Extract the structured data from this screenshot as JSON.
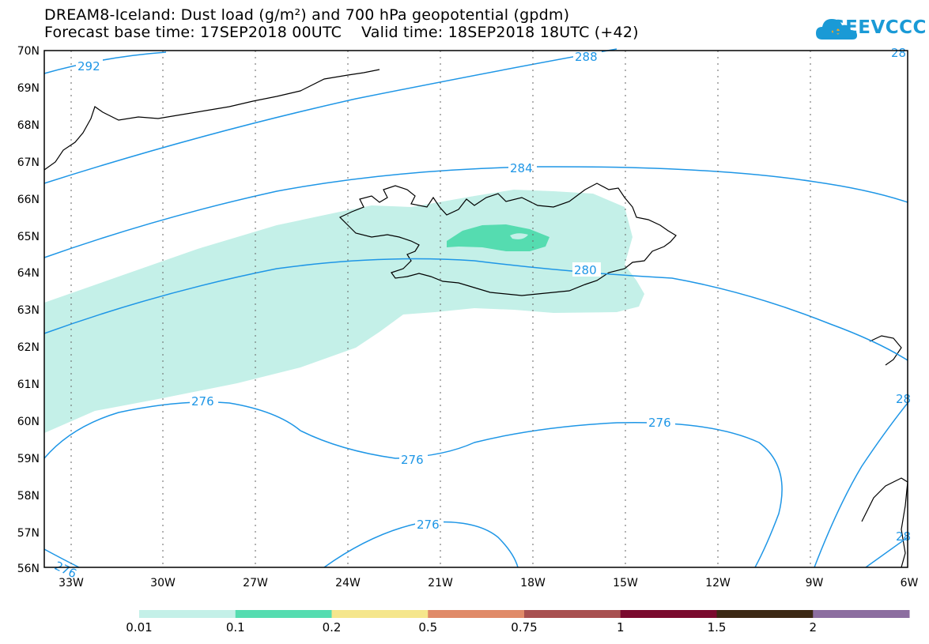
{
  "title": {
    "line1": "DREAM8-Iceland: Dust load (g/m²) and 700 hPa geopotential (gpdm)",
    "line2": "Forecast base time: 17SEP2018 00UTC    Valid time: 18SEP2018 18UTC (+42)"
  },
  "logo": {
    "text": "SEEVCCC",
    "icon": "cloud-icon"
  },
  "map": {
    "lat_labels": [
      "70N",
      "69N",
      "68N",
      "67N",
      "66N",
      "65N",
      "64N",
      "63N",
      "62N",
      "61N",
      "60N",
      "59N",
      "58N",
      "57N",
      "56N"
    ],
    "lon_labels": [
      "33W",
      "30W",
      "27W",
      "24W",
      "21W",
      "18W",
      "15W",
      "12W",
      "9W",
      "6W"
    ],
    "contour_labels": [
      "292",
      "288",
      "284",
      "280",
      "276",
      "276",
      "276",
      "276",
      "276",
      "28",
      "28",
      "28"
    ],
    "contour_color": "#1e96e6",
    "coast_color": "#000000"
  },
  "colorbar": {
    "ticks": [
      "0.01",
      "0.1",
      "0.2",
      "0.5",
      "0.75",
      "1",
      "1.5",
      "2"
    ],
    "colors": [
      "#c4f0e8",
      "#55dcb0",
      "#f5e68c",
      "#e08a68",
      "#a85050",
      "#7a0a2e",
      "#3c2814",
      "#8c6ea0"
    ]
  }
}
